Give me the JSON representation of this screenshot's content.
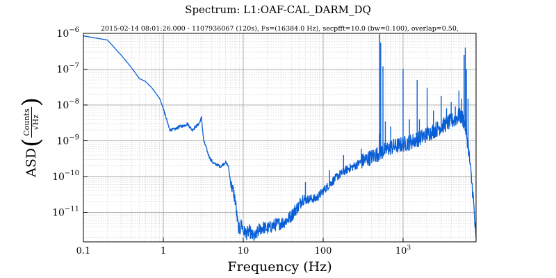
{
  "chart_data": {
    "type": "line",
    "title": "Spectrum: L1:OAF-CAL_DARM_DQ",
    "subtitle": "2015-02-14 08:01:26.000 - 1107936067 (120s), Fs=(16384.0 Hz), secpfft=10.0 (bw=0.100), overlap=0.50,",
    "xlabel": "Frequency (Hz)",
    "ylabel": {
      "prefix": "ASD",
      "numerator": "Counts",
      "denominator": "√Hz"
    },
    "x_scale": "log",
    "y_scale": "log",
    "xlim": [
      0.1,
      8192
    ],
    "ylim": [
      1.5e-12,
      1e-06
    ],
    "x_ticks": [
      {
        "value": 0.1,
        "label": "0.1"
      },
      {
        "value": 1,
        "label": "1"
      },
      {
        "value": 10,
        "label": "10"
      },
      {
        "value": 100,
        "label": "100"
      },
      {
        "value": 1000,
        "label": "10",
        "exp": "3"
      }
    ],
    "y_ticks": [
      {
        "value": 1e-06,
        "base": "10",
        "exp": "−6"
      },
      {
        "value": 1e-07,
        "base": "10",
        "exp": "−7"
      },
      {
        "value": 1e-08,
        "base": "10",
        "exp": "−8"
      },
      {
        "value": 1e-09,
        "base": "10",
        "exp": "−9"
      },
      {
        "value": 1e-10,
        "base": "10",
        "exp": "−10"
      },
      {
        "value": 1e-11,
        "base": "10",
        "exp": "−11"
      }
    ],
    "grid": true,
    "line_color": "#0a5fd6",
    "series": [
      {
        "x": [
          0.1,
          0.2,
          0.3,
          0.4,
          0.5,
          0.6,
          0.7,
          0.8,
          0.9,
          1.0,
          1.2,
          1.4,
          1.6,
          1.8,
          2.0,
          2.3,
          2.6,
          2.8,
          3.0,
          3.2,
          3.4,
          3.6,
          3.9,
          4.3,
          4.8,
          5.2,
          5.6,
          6.0,
          6.5,
          7.0,
          7.5,
          8.0,
          8.5,
          9.0,
          9.5,
          10,
          11,
          12,
          13,
          14,
          16,
          18,
          20,
          25,
          30,
          35,
          40,
          45,
          50,
          55,
          60,
          70,
          80,
          90,
          100,
          120,
          150,
          200,
          250,
          300,
          400,
          500,
          600,
          700,
          800,
          1000,
          1200,
          1500,
          2000,
          2500,
          3000,
          3500,
          4000,
          4500,
          5000,
          5500,
          6000,
          6500,
          7000,
          7500,
          8192
        ],
        "y": [
          8.5e-07,
          6.5e-07,
          2.4e-07,
          1.1e-07,
          5.5e-08,
          4.5e-08,
          3.2e-08,
          2.2e-08,
          1.5e-08,
          8e-09,
          2e-09,
          2.1e-09,
          2.5e-09,
          2.6e-09,
          3e-09,
          2e-09,
          2.6e-09,
          3e-09,
          4.5e-09,
          1e-09,
          7e-10,
          4.5e-10,
          3e-10,
          2.3e-10,
          2.1e-10,
          1.9e-10,
          2.2e-10,
          2.5e-10,
          2e-10,
          6e-11,
          4e-11,
          2e-11,
          5e-12,
          3e-12,
          5e-12,
          3e-12,
          2.6e-12,
          3e-12,
          2.2e-12,
          2e-12,
          3.5e-12,
          3.8e-12,
          3.5e-12,
          4.5e-12,
          5e-12,
          6e-12,
          8e-12,
          1.2e-11,
          1.5e-11,
          2.5e-11,
          2.2e-11,
          2.4e-11,
          2.4e-11,
          3e-11,
          4e-11,
          6e-11,
          1e-10,
          1.6e-10,
          2e-10,
          2.6e-10,
          3.5e-10,
          4.5e-10,
          5.5e-10,
          6.5e-10,
          7e-10,
          8e-10,
          9e-10,
          1.1e-09,
          1.5e-09,
          2e-09,
          2.5e-09,
          3e-09,
          3.5e-09,
          4e-09,
          5e-09,
          4.5e-09,
          2.5e-09,
          8e-10,
          1.5e-10,
          3e-11,
          1.5e-12
        ]
      }
    ],
    "peaks": [
      {
        "x": 60,
        "y": 7e-11
      },
      {
        "x": 120,
        "y": 1.5e-10
      },
      {
        "x": 180,
        "y": 4e-10
      },
      {
        "x": 300,
        "y": 6e-10
      },
      {
        "x": 505,
        "y": 1.6e-09
      },
      {
        "x": 510,
        "y": 9.5e-07
      },
      {
        "x": 525,
        "y": 5.5e-07
      },
      {
        "x": 560,
        "y": 1.2e-07
      },
      {
        "x": 600,
        "y": 3.5e-09
      },
      {
        "x": 700,
        "y": 2.5e-09
      },
      {
        "x": 1000,
        "y": 1e-07
      },
      {
        "x": 1200,
        "y": 4e-09
      },
      {
        "x": 1500,
        "y": 5e-08
      },
      {
        "x": 1600,
        "y": 4e-09
      },
      {
        "x": 2000,
        "y": 3e-08
      },
      {
        "x": 2400,
        "y": 7e-09
      },
      {
        "x": 3000,
        "y": 1.8e-08
      },
      {
        "x": 3500,
        "y": 8e-09
      },
      {
        "x": 4000,
        "y": 1.2e-08
      },
      {
        "x": 4500,
        "y": 9e-09
      },
      {
        "x": 5000,
        "y": 2.5e-08
      },
      {
        "x": 5400,
        "y": 1.5e-08
      },
      {
        "x": 5800,
        "y": 2.5e-07
      },
      {
        "x": 6000,
        "y": 4e-07
      },
      {
        "x": 6200,
        "y": 1e-07
      },
      {
        "x": 6500,
        "y": 1.5e-08
      }
    ]
  }
}
